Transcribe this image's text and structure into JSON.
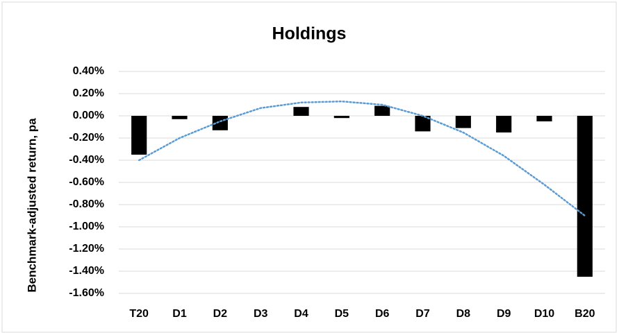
{
  "chart_data": {
    "type": "bar",
    "title": "Holdings",
    "y_label": "Benchmark-adjusted return, pa",
    "categories": [
      "T20",
      "D1",
      "D2",
      "D3",
      "D4",
      "D5",
      "D6",
      "D7",
      "D8",
      "D9",
      "D10",
      "B20"
    ],
    "series": [
      {
        "color": "#000000",
        "values": [
          -0.35,
          -0.03,
          -0.13,
          0,
          0.08,
          -0.02,
          0.09,
          -0.14,
          -0.11,
          -0.15,
          -0.05,
          -1.45
        ]
      },
      {
        "color": "#5b9bd5",
        "style": "dotted",
        "values": [
          -0.4,
          -0.2,
          -0.05,
          0.07,
          0.12,
          0.13,
          0.1,
          0.0,
          -0.15,
          -0.36,
          -0.62,
          -0.9
        ]
      }
    ],
    "ylim": [
      -1.6,
      0.4
    ],
    "yticks": [
      {
        "value": -1.6,
        "label": "-1.60%"
      },
      {
        "value": -1.4,
        "label": "-1.40%"
      },
      {
        "value": -1.2,
        "label": "-1.20%"
      },
      {
        "value": -1.0,
        "label": "-1.00%"
      },
      {
        "value": -0.8,
        "label": "-0.80%"
      },
      {
        "value": -0.6,
        "label": "-0.60%"
      },
      {
        "value": -0.4,
        "label": "-0.40%"
      },
      {
        "value": -0.2,
        "label": "-0.20%"
      },
      {
        "value": 0,
        "label": "0.00%"
      },
      {
        "value": 0.2,
        "label": "0.20%"
      },
      {
        "value": 0.4,
        "label": "0.40%"
      }
    ],
    "grid": true
  }
}
